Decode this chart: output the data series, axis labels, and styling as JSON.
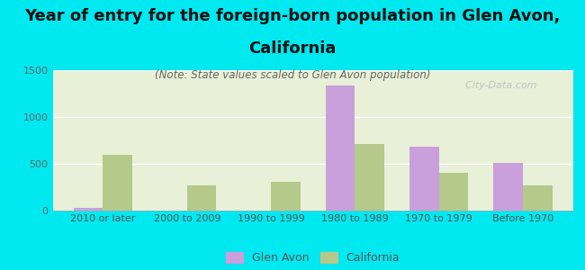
{
  "title_line1": "Year of entry for the foreign-born population in Glen Avon,",
  "title_line2": "California",
  "subtitle": "(Note: State values scaled to Glen Avon population)",
  "categories": [
    "2010 or later",
    "2000 to 2009",
    "1990 to 1999",
    "1980 to 1989",
    "1970 to 1979",
    "Before 1970"
  ],
  "glen_avon": [
    30,
    0,
    0,
    1340,
    680,
    510
  ],
  "california": [
    600,
    270,
    310,
    710,
    400,
    270
  ],
  "glen_avon_color": "#c9a0dc",
  "california_color": "#b5c98a",
  "background_color": "#00e8f0",
  "ylim": [
    0,
    1500
  ],
  "yticks": [
    0,
    500,
    1000,
    1500
  ],
  "bar_width": 0.35,
  "watermark": "  City-Data.com",
  "title_fontsize": 13,
  "subtitle_fontsize": 8.5,
  "tick_fontsize": 8,
  "legend_labels": [
    "Glen Avon",
    "California"
  ]
}
